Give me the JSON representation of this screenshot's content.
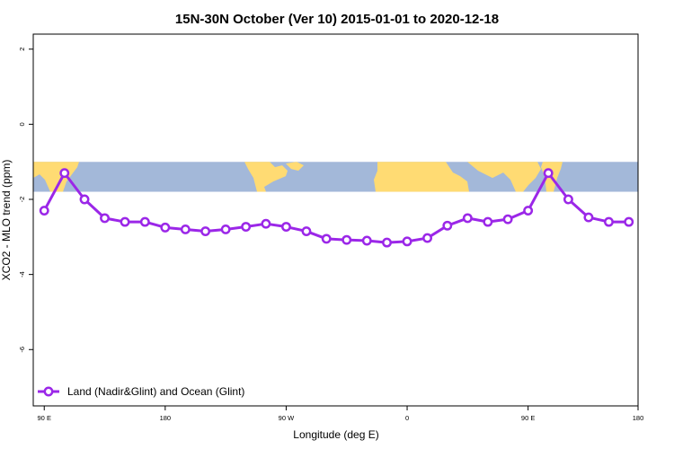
{
  "chart_data": {
    "type": "line",
    "title": "15N-30N October (Ver 10)   2015-01-01 to 2020-12-18",
    "xlabel": "Longitude (deg E)",
    "ylabel": "XCO2 - MLO trend (ppm)",
    "xlim": [
      -95,
      180
    ],
    "ylim": [
      -7.5,
      2.4
    ],
    "x_ticks": [
      {
        "value": -90,
        "label": "90 E"
      },
      {
        "value": -35,
        "label": "180"
      },
      {
        "value": 20,
        "label": "90 W"
      },
      {
        "value": 75,
        "label": "0"
      },
      {
        "value": 130,
        "label": "90 E"
      },
      {
        "value": 180,
        "label": "180"
      }
    ],
    "y_ticks": [
      {
        "value": 2,
        "label": "2"
      },
      {
        "value": 0,
        "label": "0"
      },
      {
        "value": -2,
        "label": "-2"
      },
      {
        "value": -4,
        "label": "-4"
      },
      {
        "value": -6,
        "label": "-6"
      }
    ],
    "map_band": {
      "y_top": -1.0,
      "y_bottom": -1.8,
      "ocean_color": "#a3b8d9",
      "land_color": "#ffdb73"
    },
    "legend_position": "bottom-left",
    "grid": false,
    "series": [
      {
        "name": "Land (Nadir&Glint) and Ocean (Glint)",
        "color": "#9b27e8",
        "x": [
          -90,
          -80.8,
          -71.7,
          -62.5,
          -53.3,
          -44.2,
          -35,
          -25.8,
          -16.7,
          -7.5,
          1.7,
          10.8,
          20,
          29.2,
          38.3,
          47.5,
          56.7,
          65.8,
          75,
          84.2,
          93.3,
          102.5,
          111.7,
          120.8,
          130,
          139.2,
          148.3,
          157.5,
          166.7,
          175.8
        ],
        "y": [
          -2.3,
          -1.3,
          -2.0,
          -2.5,
          -2.6,
          -2.6,
          -2.75,
          -2.8,
          -2.85,
          -2.8,
          -2.73,
          -2.65,
          -2.73,
          -2.85,
          -3.05,
          -3.08,
          -3.1,
          -3.15,
          -3.12,
          -3.03,
          -2.7,
          -2.5,
          -2.6,
          -2.53,
          -2.3,
          -1.3,
          -2.0,
          -2.48,
          -2.6,
          -2.6
        ]
      }
    ]
  }
}
